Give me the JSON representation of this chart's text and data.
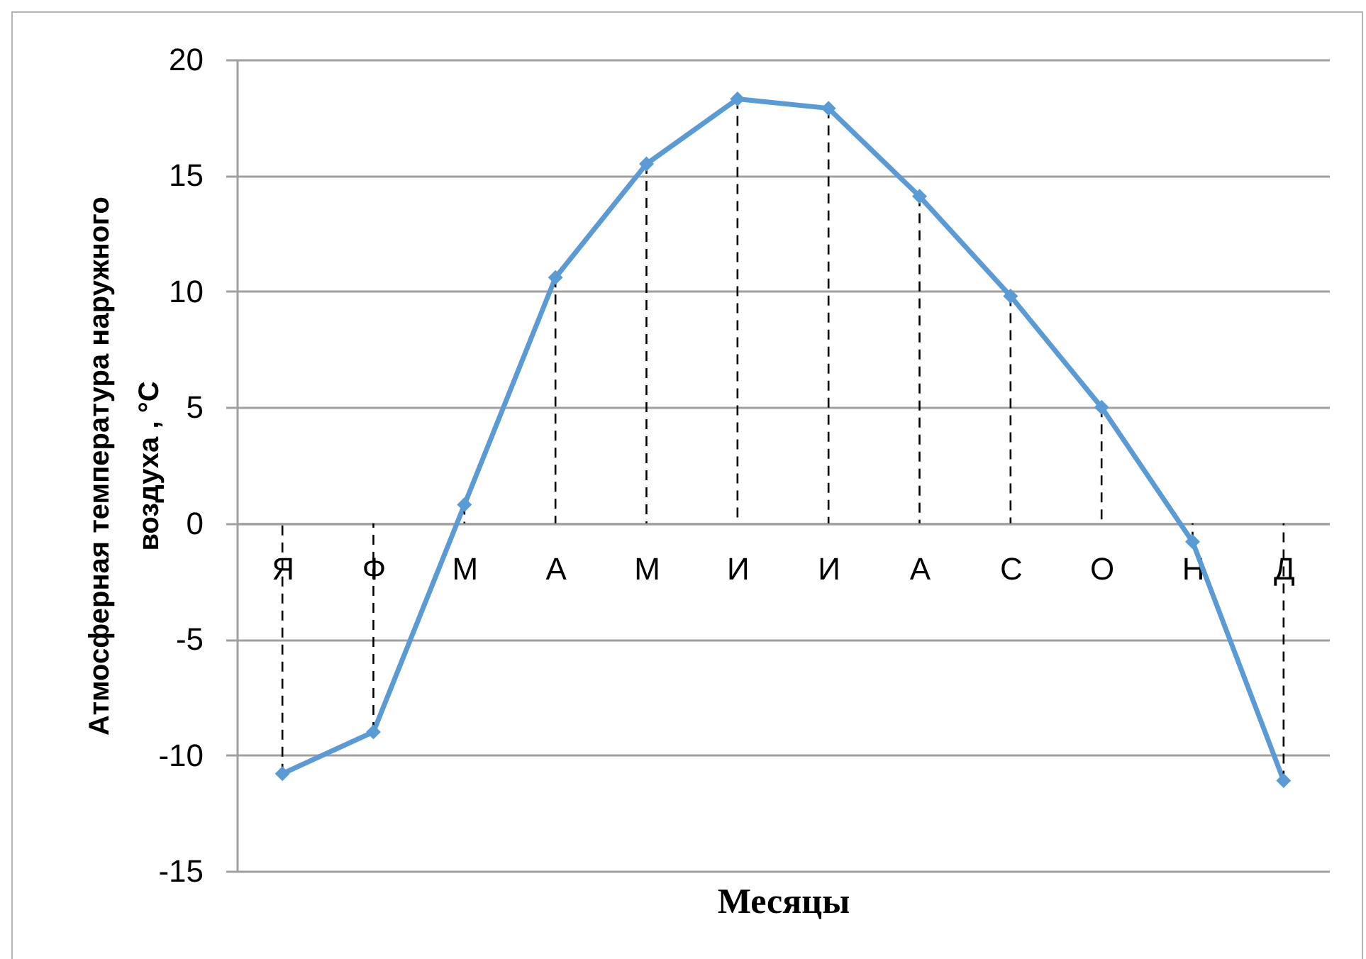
{
  "chart_data": {
    "type": "line",
    "xlabel": "Месяцы",
    "ylabel": "Атмосферная температура наружного воздуха , °C",
    "categories": [
      "Я",
      "Ф",
      "М",
      "А",
      "М",
      "И",
      "И",
      "А",
      "С",
      "О",
      "Н",
      "Д"
    ],
    "series": [
      {
        "type": "line",
        "color": "#5b9bd5",
        "marker": "none",
        "values": [
          -10.8,
          -9.0,
          0.8,
          10.6,
          15.5,
          18.3,
          17.9,
          14.1,
          9.8,
          5.0,
          -0.8,
          -11.1
        ]
      },
      {
        "type": "lollipop",
        "color": "#5b9bd5",
        "line_style": "dashed",
        "values": [
          -10.8,
          -9.0,
          0.8,
          10.6,
          15.5,
          18.3,
          17.9,
          14.1,
          9.8,
          5.0,
          -0.8,
          -11.1
        ]
      }
    ],
    "ylim": [
      -15,
      20
    ],
    "yticks": [
      -15,
      -10,
      -5,
      0,
      5,
      10,
      15,
      20
    ],
    "grid": "y",
    "marker": "diamond",
    "line_style": "solid"
  }
}
